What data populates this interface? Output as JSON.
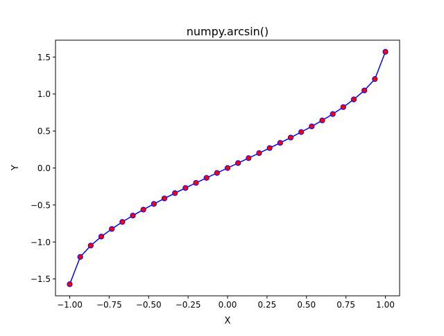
{
  "chart_data": {
    "type": "line",
    "title": "numpy.arcsin()",
    "xlabel": "X",
    "ylabel": "Y",
    "xlim": [
      -1.09,
      1.09
    ],
    "ylim": [
      -1.728,
      1.728
    ],
    "xticks": [
      -1.0,
      -0.75,
      -0.5,
      -0.25,
      0.0,
      0.25,
      0.5,
      0.75,
      1.0
    ],
    "xtick_labels": [
      "−1.00",
      "−0.75",
      "−0.50",
      "−0.25",
      "0.00",
      "0.25",
      "0.50",
      "0.75",
      "1.00"
    ],
    "yticks": [
      -1.5,
      -1.0,
      -0.5,
      0.0,
      0.5,
      1.0,
      1.5
    ],
    "ytick_labels": [
      "−1.5",
      "−1.0",
      "−0.5",
      "0.0",
      "0.5",
      "1.0",
      "1.5"
    ],
    "grid": false,
    "legend": "none",
    "series": [
      {
        "line_color": "#0000ff",
        "marker_color": "#ff0000",
        "marker": "circle",
        "x": [
          -1.0,
          -0.9333,
          -0.8667,
          -0.8,
          -0.7333,
          -0.6667,
          -0.6,
          -0.5333,
          -0.4667,
          -0.4,
          -0.3333,
          -0.2667,
          -0.2,
          -0.1333,
          -0.0667,
          0.0,
          0.0667,
          0.1333,
          0.2,
          0.2667,
          0.3333,
          0.4,
          0.4667,
          0.5333,
          0.6,
          0.6667,
          0.7333,
          0.8,
          0.8667,
          0.9333,
          1.0
        ],
        "y": [
          -1.5708,
          -1.202,
          -1.0484,
          -0.9273,
          -0.8237,
          -0.7297,
          -0.6435,
          -0.5626,
          -0.4857,
          -0.4115,
          -0.3398,
          -0.2699,
          -0.2014,
          -0.1337,
          -0.0667,
          0.0,
          0.0667,
          0.1337,
          0.2014,
          0.2699,
          0.3398,
          0.4115,
          0.4857,
          0.5626,
          0.6435,
          0.7297,
          0.8237,
          0.9273,
          1.0484,
          1.202,
          1.5708
        ]
      }
    ]
  }
}
